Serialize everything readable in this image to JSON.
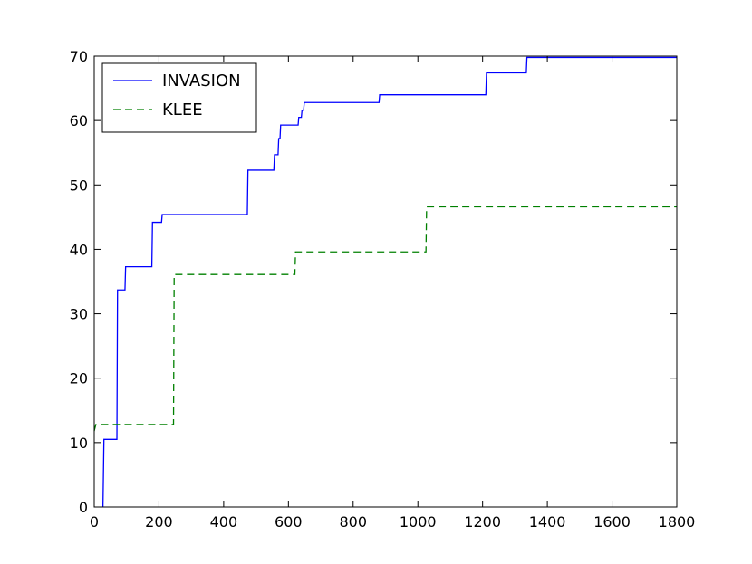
{
  "chart_data": {
    "type": "line",
    "title": "",
    "xlabel": "",
    "ylabel": "",
    "xlim": [
      0,
      1800
    ],
    "ylim": [
      0,
      70
    ],
    "xticks": [
      0,
      200,
      400,
      600,
      800,
      1000,
      1200,
      1400,
      1600,
      1800
    ],
    "yticks": [
      0,
      10,
      20,
      30,
      40,
      50,
      60,
      70
    ],
    "grid": false,
    "legend_position": "top-left",
    "series": [
      {
        "name": "INVASION",
        "color": "#0000ff",
        "style": "solid",
        "points": [
          [
            27,
            0
          ],
          [
            30,
            10.5
          ],
          [
            70,
            10.5
          ],
          [
            72,
            33.7
          ],
          [
            95,
            33.7
          ],
          [
            97,
            37.3
          ],
          [
            178,
            37.3
          ],
          [
            180,
            44.2
          ],
          [
            208,
            44.2
          ],
          [
            210,
            45.4
          ],
          [
            473,
            45.4
          ],
          [
            475,
            52.3
          ],
          [
            555,
            52.3
          ],
          [
            557,
            54.7
          ],
          [
            568,
            54.7
          ],
          [
            570,
            57.2
          ],
          [
            574,
            57.2
          ],
          [
            576,
            59.3
          ],
          [
            630,
            59.3
          ],
          [
            632,
            60.5
          ],
          [
            640,
            60.5
          ],
          [
            642,
            61.6
          ],
          [
            647,
            61.6
          ],
          [
            649,
            62.8
          ],
          [
            880,
            62.8
          ],
          [
            882,
            64.0
          ],
          [
            1210,
            64.0
          ],
          [
            1212,
            67.4
          ],
          [
            1335,
            67.4
          ],
          [
            1337,
            69.8
          ],
          [
            1800,
            69.8
          ]
        ]
      },
      {
        "name": "KLEE",
        "color": "#008000",
        "style": "dashed",
        "points": [
          [
            0,
            11.8
          ],
          [
            5,
            12.8
          ],
          [
            245,
            12.8
          ],
          [
            247,
            36.1
          ],
          [
            620,
            36.1
          ],
          [
            622,
            39.6
          ],
          [
            1025,
            39.6
          ],
          [
            1027,
            46.6
          ],
          [
            1800,
            46.6
          ]
        ]
      }
    ]
  }
}
